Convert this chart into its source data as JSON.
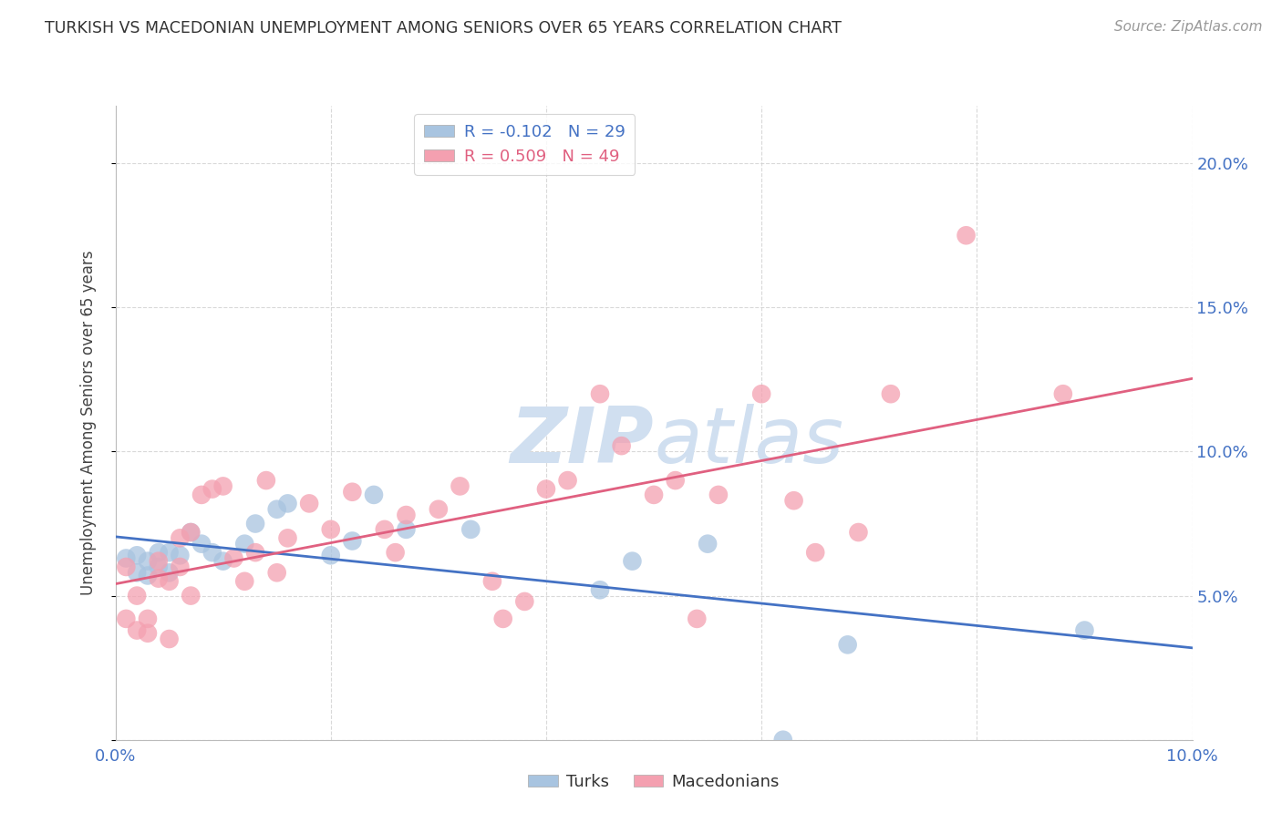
{
  "title": "TURKISH VS MACEDONIAN UNEMPLOYMENT AMONG SENIORS OVER 65 YEARS CORRELATION CHART",
  "source": "Source: ZipAtlas.com",
  "ylabel_label": "Unemployment Among Seniors over 65 years",
  "x_min": 0.0,
  "x_max": 0.1,
  "y_min": 0.0,
  "y_max": 0.22,
  "x_ticks": [
    0.0,
    0.02,
    0.04,
    0.06,
    0.08,
    0.1
  ],
  "y_ticks": [
    0.0,
    0.05,
    0.1,
    0.15,
    0.2
  ],
  "y_tick_labels": [
    "",
    "5.0%",
    "10.0%",
    "15.0%",
    "20.0%"
  ],
  "turks_R": -0.102,
  "turks_N": 29,
  "macedonians_R": 0.509,
  "macedonians_N": 49,
  "turks_color": "#a8c4e0",
  "macedonians_color": "#f4a0b0",
  "turks_line_color": "#4472c4",
  "macedonians_line_color": "#e06080",
  "watermark_color": "#d0dff0",
  "background_color": "#ffffff",
  "tick_color": "#4472c4",
  "grid_color": "#d0d0d0",
  "turks_x": [
    0.001,
    0.002,
    0.002,
    0.003,
    0.003,
    0.004,
    0.004,
    0.005,
    0.005,
    0.006,
    0.007,
    0.008,
    0.009,
    0.01,
    0.012,
    0.013,
    0.015,
    0.016,
    0.02,
    0.022,
    0.024,
    0.027,
    0.033,
    0.045,
    0.048,
    0.055,
    0.062,
    0.068,
    0.09
  ],
  "turks_y": [
    0.063,
    0.058,
    0.064,
    0.057,
    0.062,
    0.065,
    0.06,
    0.058,
    0.065,
    0.064,
    0.072,
    0.068,
    0.065,
    0.062,
    0.068,
    0.075,
    0.08,
    0.082,
    0.064,
    0.069,
    0.085,
    0.073,
    0.073,
    0.052,
    0.062,
    0.068,
    0.0,
    0.033,
    0.038
  ],
  "macedonians_x": [
    0.001,
    0.001,
    0.002,
    0.002,
    0.003,
    0.003,
    0.004,
    0.004,
    0.005,
    0.005,
    0.006,
    0.006,
    0.007,
    0.007,
    0.008,
    0.009,
    0.01,
    0.011,
    0.012,
    0.013,
    0.014,
    0.015,
    0.016,
    0.018,
    0.02,
    0.022,
    0.025,
    0.026,
    0.027,
    0.03,
    0.032,
    0.035,
    0.036,
    0.038,
    0.04,
    0.042,
    0.045,
    0.047,
    0.05,
    0.052,
    0.054,
    0.056,
    0.06,
    0.063,
    0.065,
    0.069,
    0.072,
    0.079,
    0.088
  ],
  "macedonians_y": [
    0.06,
    0.042,
    0.05,
    0.038,
    0.042,
    0.037,
    0.062,
    0.056,
    0.035,
    0.055,
    0.06,
    0.07,
    0.05,
    0.072,
    0.085,
    0.087,
    0.088,
    0.063,
    0.055,
    0.065,
    0.09,
    0.058,
    0.07,
    0.082,
    0.073,
    0.086,
    0.073,
    0.065,
    0.078,
    0.08,
    0.088,
    0.055,
    0.042,
    0.048,
    0.087,
    0.09,
    0.12,
    0.102,
    0.085,
    0.09,
    0.042,
    0.085,
    0.12,
    0.083,
    0.065,
    0.072,
    0.12,
    0.175,
    0.12
  ]
}
